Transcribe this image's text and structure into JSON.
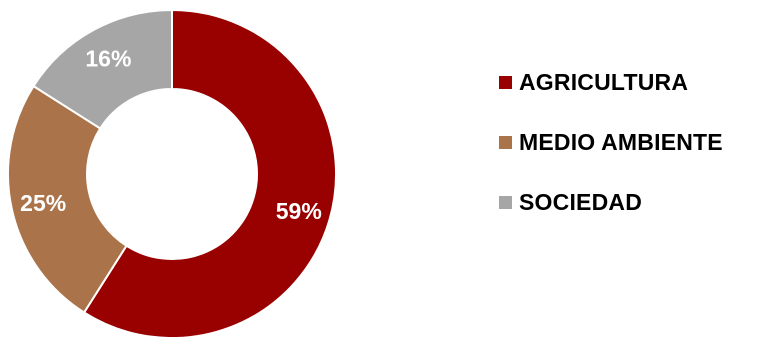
{
  "chart_data": {
    "type": "pie",
    "donut": true,
    "categories": [
      "AGRICULTURA",
      "MEDIO AMBIENTE",
      "SOCIEDAD"
    ],
    "values": [
      59,
      25,
      16
    ],
    "data_labels": [
      "59%",
      "25%",
      "16%"
    ],
    "colors": [
      "#990000",
      "#AA734A",
      "#A6A6A6"
    ],
    "legend_position": "right",
    "title": ""
  }
}
